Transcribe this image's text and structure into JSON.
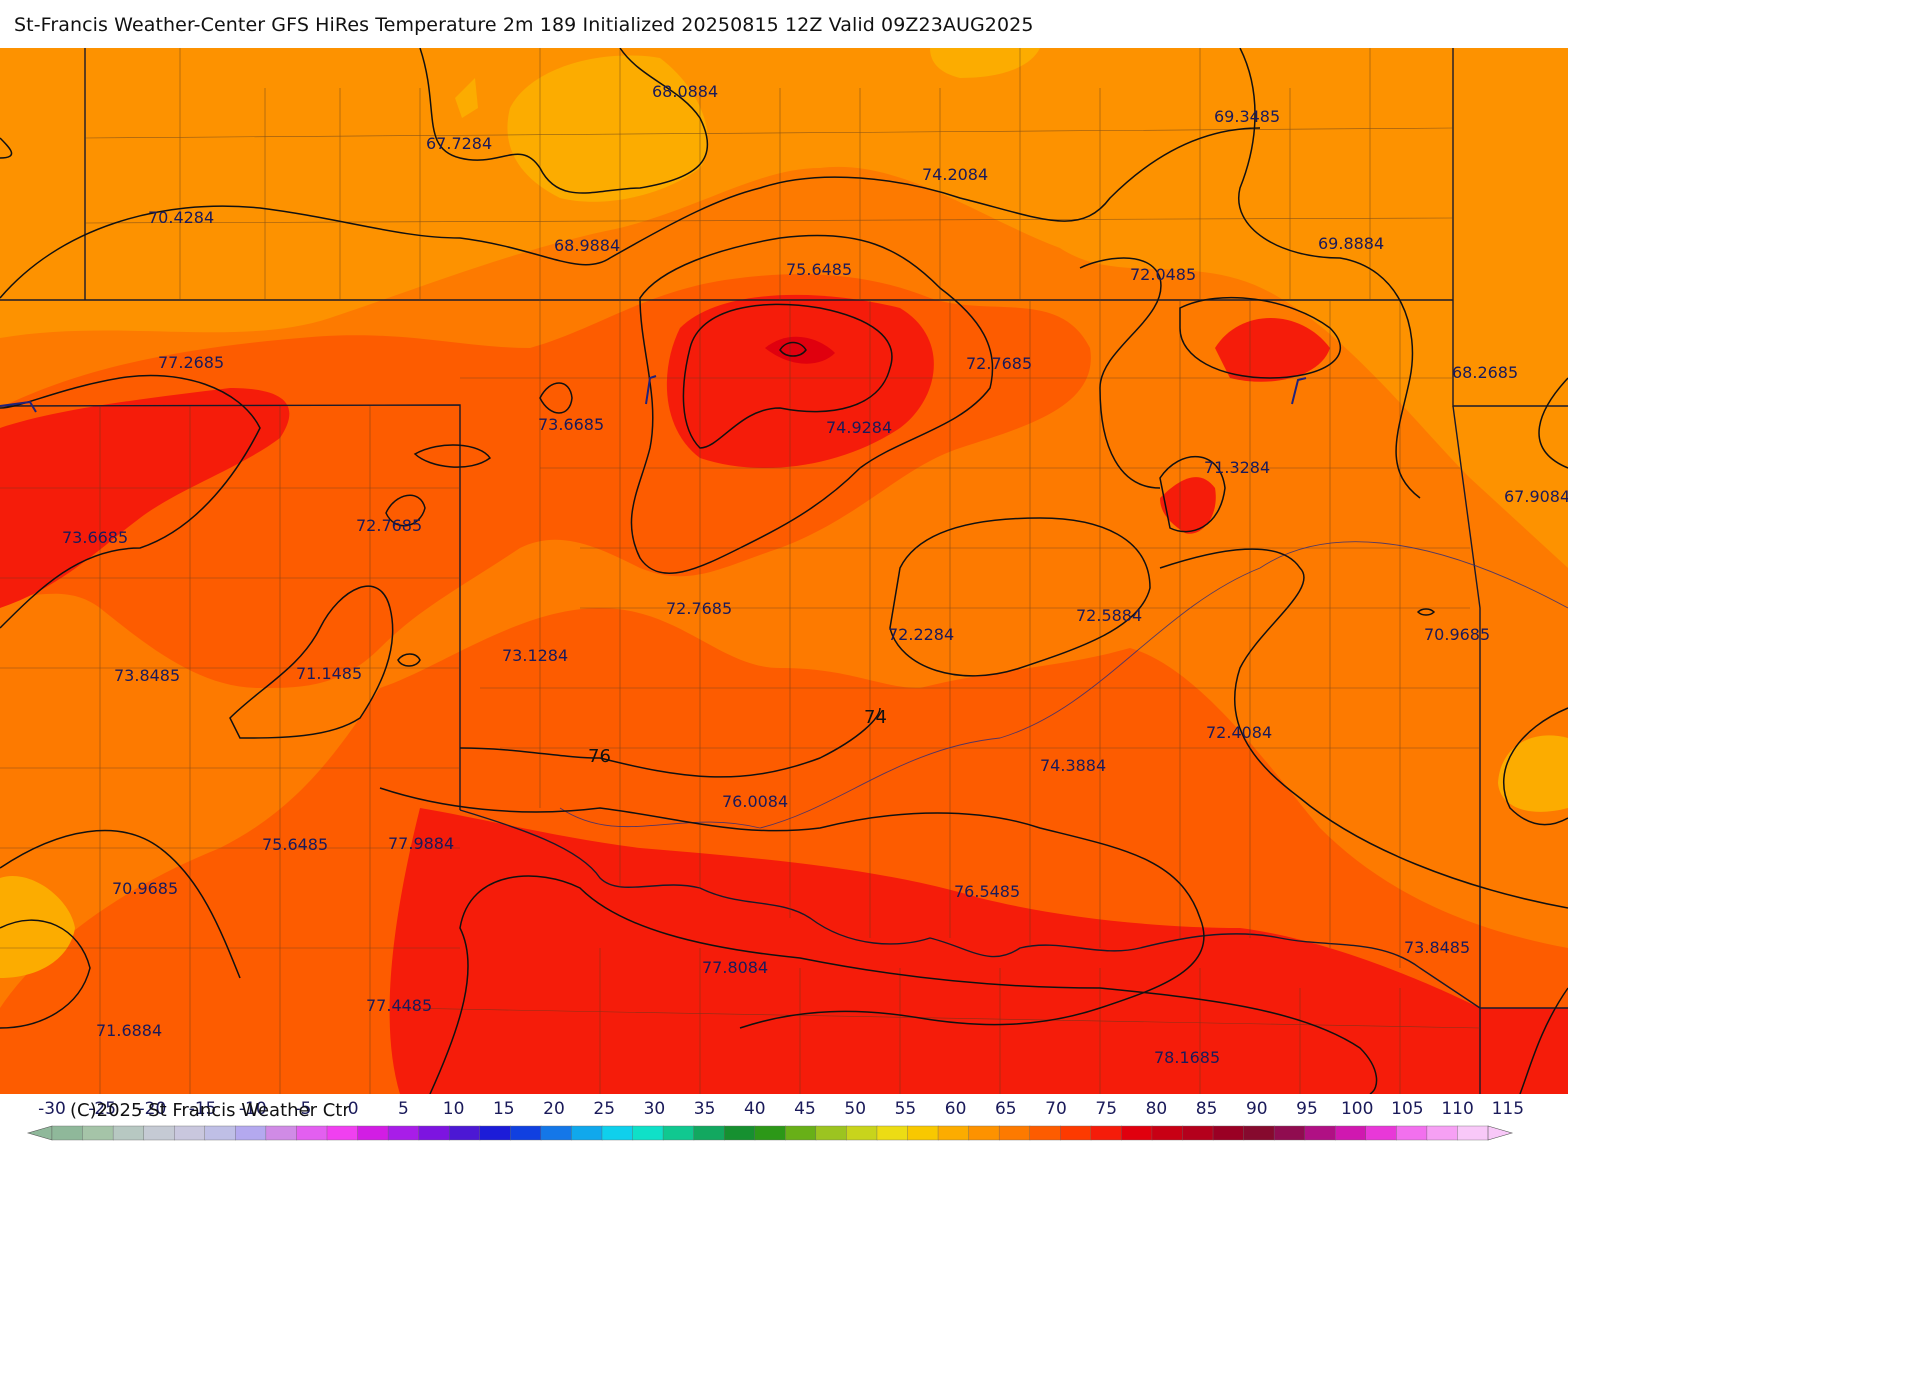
{
  "title": "St-Francis Weather-Center GFS HiRes Temperature 2m  189 Initialized 20250815 12Z Valid 09Z23AUG2025",
  "copyright": "(C)2025 St Francis Weather Ctr",
  "point_values": [
    "68.0884",
    "67.7284",
    "69.3485",
    "74.2084",
    "70.4284",
    "68.9884",
    "75.6485",
    "72.0485",
    "69.8884",
    "77.2685",
    "72.7685",
    "68.2685",
    "73.6685",
    "74.9284",
    "71.3284",
    "67.9084",
    "73.6685",
    "72.7685",
    "72.7685",
    "72.2284",
    "72.5884",
    "70.9685",
    "73.8485",
    "71.1485",
    "73.1284",
    "72.4084",
    "74.3884",
    "76.0084",
    "75.6485",
    "77.9884",
    "70.9685",
    "76.5485",
    "73.8485",
    "77.8084",
    "77.4485",
    "71.6884",
    "78.1685"
  ],
  "contour_labels": [
    "74",
    "76"
  ],
  "legend": {
    "ticks": [
      "-30",
      "-25",
      "-20",
      "-15",
      "-10",
      "-5",
      "0",
      "5",
      "10",
      "15",
      "20",
      "25",
      "30",
      "35",
      "40",
      "45",
      "50",
      "55",
      "60",
      "65",
      "70",
      "75",
      "80",
      "85",
      "90",
      "95",
      "100",
      "105",
      "110",
      "115"
    ],
    "colors": [
      "#8fb89a",
      "#a5c4a8",
      "#b7c8c2",
      "#c5cad4",
      "#c9c7de",
      "#bfbfe6",
      "#b4a9ef",
      "#d08be6",
      "#e35ff0",
      "#f040f0",
      "#d21de4",
      "#a81de8",
      "#7d14e0",
      "#4c18d4",
      "#1c1cd8",
      "#1040e0",
      "#1477e8",
      "#10a8ec",
      "#0fd0ec",
      "#0fe0c8",
      "#10c890",
      "#12a860",
      "#169030",
      "#2c9818",
      "#68b018",
      "#9cc420",
      "#c8d41c",
      "#ecdc14",
      "#f8c800",
      "#fcac00",
      "#fd9200",
      "#fd7a00",
      "#fd5c00",
      "#fd3a00",
      "#f51c0a",
      "#e0000e",
      "#c80014",
      "#b4001c",
      "#9a0024",
      "#860a2e",
      "#900c50",
      "#b01084",
      "#d018b0",
      "#e838d8",
      "#f270ee",
      "#f6a0f4",
      "#f8c8f8"
    ]
  }
}
